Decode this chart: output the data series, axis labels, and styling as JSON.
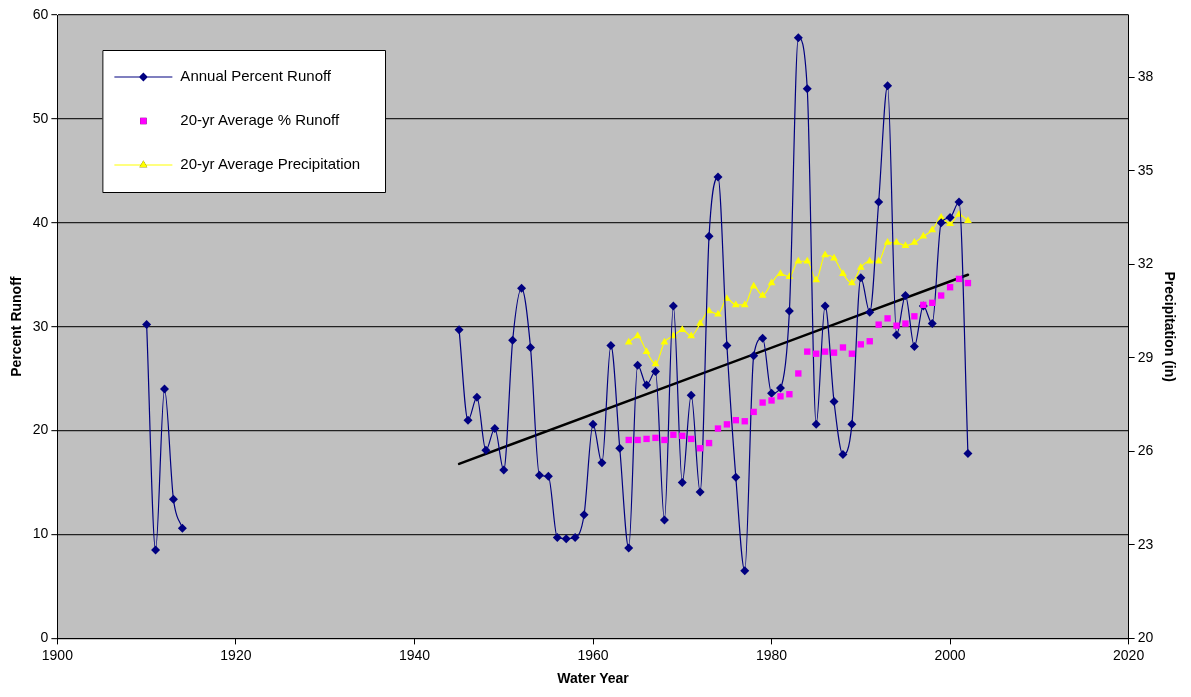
{
  "chart_data": {
    "type": "line",
    "xlabel": "Water Year",
    "ylabel": "Percent Runoff",
    "y2label": "Precipitation (in)",
    "xlim": [
      1900,
      2020
    ],
    "xticks": [
      1900,
      1920,
      1940,
      1960,
      1980,
      2000,
      2020
    ],
    "ylim": [
      0,
      60
    ],
    "yticks": [
      0,
      10,
      20,
      30,
      40,
      50,
      60
    ],
    "y2lim": [
      20,
      40
    ],
    "y2ticks": [
      20,
      23,
      26,
      29,
      32,
      35,
      38
    ],
    "grid": "y",
    "legend": "top left",
    "series": [
      {
        "name": "Annual Percent Runoff",
        "type": "line",
        "color": "#000080",
        "marker": "diamond",
        "line_style": "solid",
        "x": [
          1910,
          1911,
          1912,
          1913,
          1914,
          1915,
          1945,
          1946,
          1947,
          1948,
          1949,
          1950,
          1951,
          1952,
          1953,
          1954,
          1955,
          1956,
          1957,
          1958,
          1959,
          1960,
          1961,
          1962,
          1963,
          1964,
          1965,
          1966,
          1967,
          1968,
          1969,
          1970,
          1971,
          1972,
          1973,
          1974,
          1975,
          1976,
          1977,
          1978,
          1979,
          1980,
          1981,
          1982,
          1983,
          1984,
          1985,
          1986,
          1987,
          1988,
          1989,
          1990,
          1991,
          1992,
          1993,
          1994,
          1995,
          1996,
          1997,
          1998,
          1999,
          2000,
          2001,
          2002
        ],
        "values": [
          30.2,
          8.5,
          24,
          13.4,
          10.6,
          null,
          29.7,
          21,
          23.2,
          18.1,
          20.2,
          16.2,
          28.7,
          33.7,
          28,
          15.7,
          15.6,
          9.7,
          9.6,
          9.7,
          11.9,
          20.6,
          16.9,
          28.2,
          18.3,
          8.7,
          26.3,
          24.4,
          25.7,
          11.4,
          32,
          15,
          23.4,
          14.1,
          38.7,
          44.4,
          28.2,
          15.5,
          6.5,
          27.2,
          28.9,
          23.6,
          24.1,
          31.5,
          57.8,
          52.9,
          20.6,
          32,
          22.8,
          17.7,
          20.6,
          34.7,
          31.4,
          42,
          53.2,
          29.2,
          33,
          28.1,
          32,
          30.3,
          40,
          40.5,
          42,
          17.8
        ]
      },
      {
        "name": "20-yr Average % Runoff",
        "type": "scatter",
        "color": "#ff00ff",
        "marker": "square",
        "x": [
          1964,
          1965,
          1966,
          1967,
          1968,
          1969,
          1970,
          1971,
          1972,
          1973,
          1974,
          1975,
          1976,
          1977,
          1978,
          1979,
          1980,
          1981,
          1982,
          1983,
          1984,
          1985,
          1986,
          1987,
          1988,
          1989,
          1990,
          1991,
          1992,
          1993,
          1994,
          1995,
          1996,
          1997,
          1998,
          1999,
          2000,
          2001,
          2002
        ],
        "values": [
          19.1,
          19.1,
          19.2,
          19.3,
          19.1,
          19.6,
          19.5,
          19.2,
          18.3,
          18.8,
          20.2,
          20.6,
          21,
          20.9,
          21.8,
          22.7,
          22.9,
          23.3,
          23.5,
          25.5,
          27.6,
          27.4,
          27.6,
          27.5,
          28,
          27.4,
          28.3,
          28.6,
          30.2,
          30.8,
          30.1,
          30.3,
          31,
          32.1,
          32.3,
          33,
          33.8,
          34.6,
          34.2
        ]
      },
      {
        "name": "20-yr Average Precipitation",
        "type": "line",
        "axis": "y2",
        "color": "#ffff00",
        "marker": "triangle",
        "line_style": "solid",
        "x": [
          1964,
          1965,
          1966,
          1967,
          1968,
          1969,
          1970,
          1971,
          1972,
          1973,
          1974,
          1975,
          1976,
          1977,
          1978,
          1979,
          1980,
          1981,
          1982,
          1983,
          1984,
          1985,
          1986,
          1987,
          1988,
          1989,
          1990,
          1991,
          1992,
          1993,
          1994,
          1995,
          1996,
          1997,
          1998,
          1999,
          2000,
          2001,
          2002
        ],
        "values": [
          29.5,
          29.7,
          29.2,
          28.8,
          29.5,
          29.7,
          29.9,
          29.7,
          30.1,
          30.5,
          30.4,
          30.9,
          30.7,
          30.7,
          31.3,
          31,
          31.4,
          31.7,
          31.6,
          32.1,
          32.1,
          31.5,
          32.3,
          32.2,
          31.7,
          31.4,
          31.9,
          32.1,
          32.1,
          32.7,
          32.7,
          32.6,
          32.7,
          32.9,
          33.1,
          33.5,
          33.3,
          33.6,
          33.4
        ]
      },
      {
        "type": "line",
        "color": "#000000",
        "marker": "none",
        "line_style": "solid",
        "x": [
          1945,
          2002
        ],
        "values": [
          16.8,
          35
        ]
      }
    ]
  }
}
